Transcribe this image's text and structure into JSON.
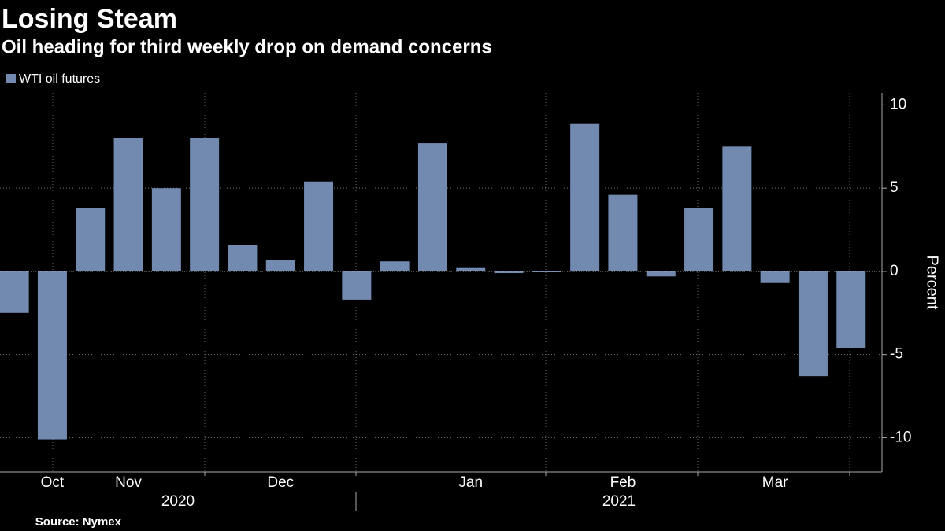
{
  "chart_data": {
    "type": "bar",
    "title": "Losing Steam",
    "subtitle": "Oil heading for third weekly drop on demand concerns",
    "y_label": "Percent",
    "source": "Source: Nymex",
    "categories": [
      null,
      "Oct",
      null,
      "Nov",
      null,
      null,
      null,
      "Dec",
      null,
      null,
      null,
      null,
      "Jan",
      null,
      null,
      null,
      "Feb",
      null,
      null,
      null,
      "Mar",
      null,
      null
    ],
    "year_labels": [
      "2020",
      "2021"
    ],
    "series": [
      {
        "name": "WTI oil futures",
        "color": "#7289b0",
        "values": [
          -2.5,
          -10.1,
          3.8,
          8.0,
          5.0,
          8.0,
          1.6,
          0.7,
          5.4,
          -1.7,
          0.6,
          7.7,
          0.2,
          -0.1,
          -0.05,
          8.9,
          4.6,
          -0.3,
          3.8,
          7.5,
          -0.7,
          -6.3,
          -4.6
        ]
      }
    ],
    "ylim": [
      -12.06,
      10.73
    ],
    "yticks": [
      -10,
      -5,
      0,
      5,
      10
    ],
    "grid": true
  }
}
